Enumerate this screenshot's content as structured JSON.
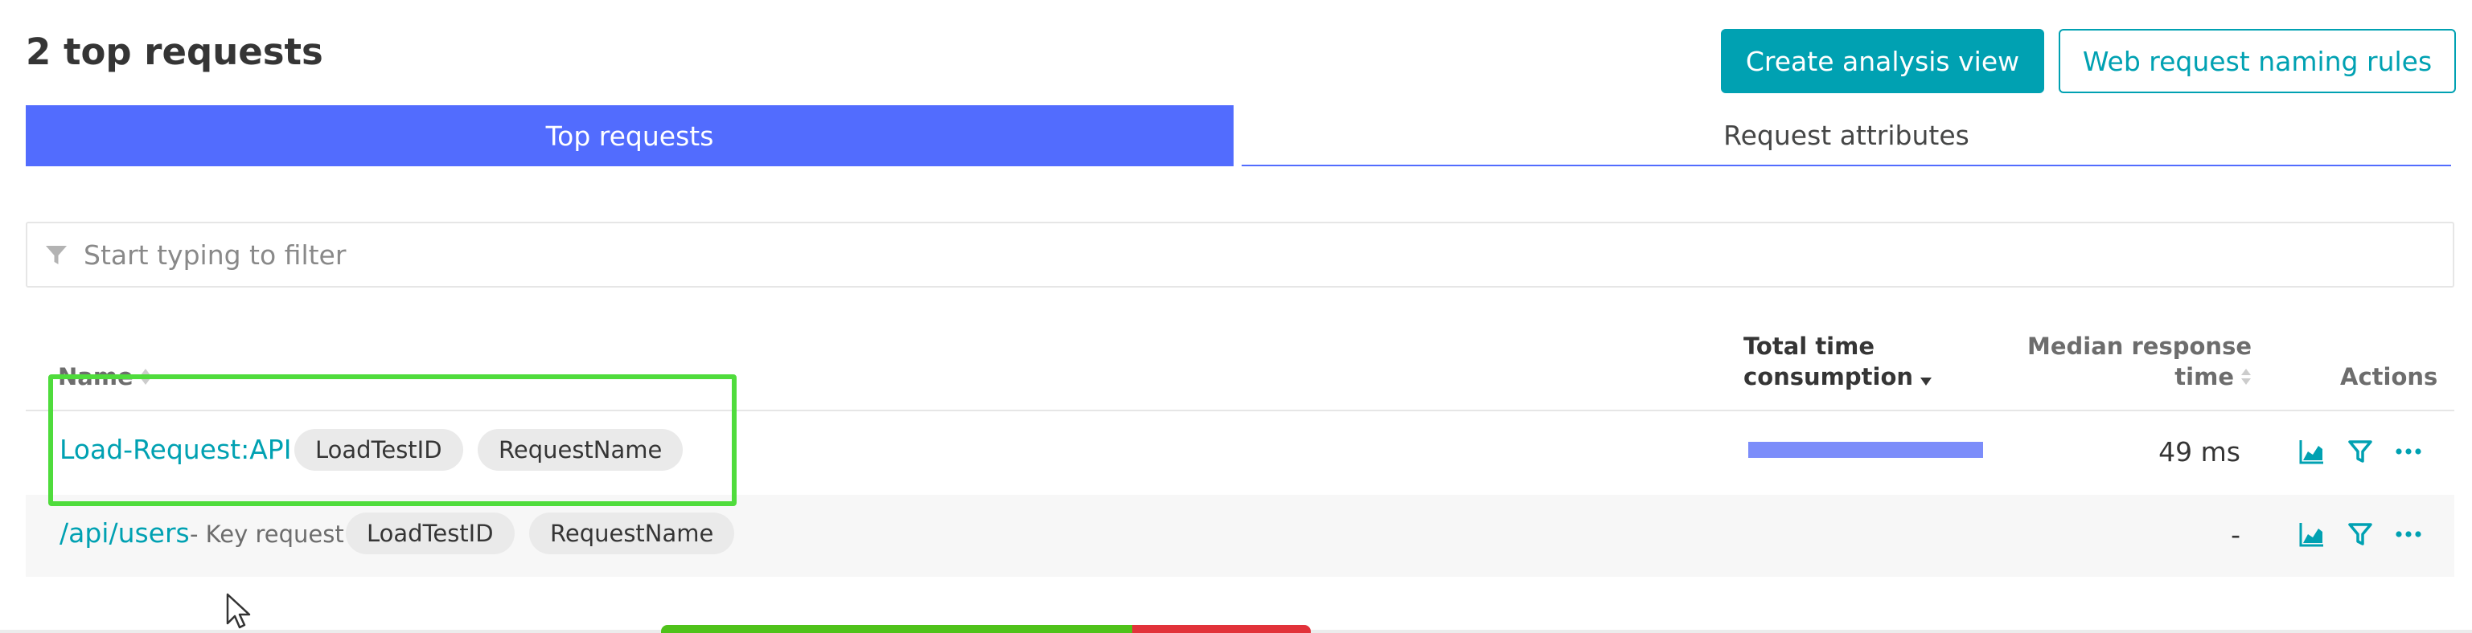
{
  "page": {
    "title": "2 top requests"
  },
  "header": {
    "create_button": "Create analysis view",
    "naming_button": "Web request naming rules"
  },
  "tabs": [
    {
      "label": "Top requests",
      "active": true
    },
    {
      "label": "Request attributes",
      "active": false
    }
  ],
  "filter": {
    "placeholder": "Start typing to filter",
    "value": ""
  },
  "table": {
    "columns": {
      "name": "Name",
      "total_line1": "Total time",
      "total_line2": "consumption",
      "median_line1": "Median response",
      "median_line2": "time",
      "actions": "Actions"
    },
    "sort": {
      "column": "total_time_consumption",
      "direction": "desc"
    },
    "rows": [
      {
        "name": "Load-Request:API",
        "key_request": "",
        "attributes": [
          "LoadTestID",
          "RequestName"
        ],
        "total_time_fraction": 1.0,
        "median": "49 ms"
      },
      {
        "name": "/api/users",
        "key_request": "- Key request",
        "attributes": [
          "LoadTestID",
          "RequestName"
        ],
        "total_time_fraction": 0,
        "median": "-"
      }
    ]
  },
  "icons": {
    "filter": "filter-icon",
    "chart": "chart-icon",
    "funnel": "filter-action-icon",
    "more": "more-icon",
    "sort": "sort-icon",
    "cursor": "mouse-cursor-icon"
  },
  "colors": {
    "accent": "#00a1b2",
    "tab_active": "#526cfe",
    "bar": "#7c8dfa",
    "highlight": "#4fdc3c",
    "status_green": "#4fc21a",
    "status_red": "#e2323a"
  }
}
